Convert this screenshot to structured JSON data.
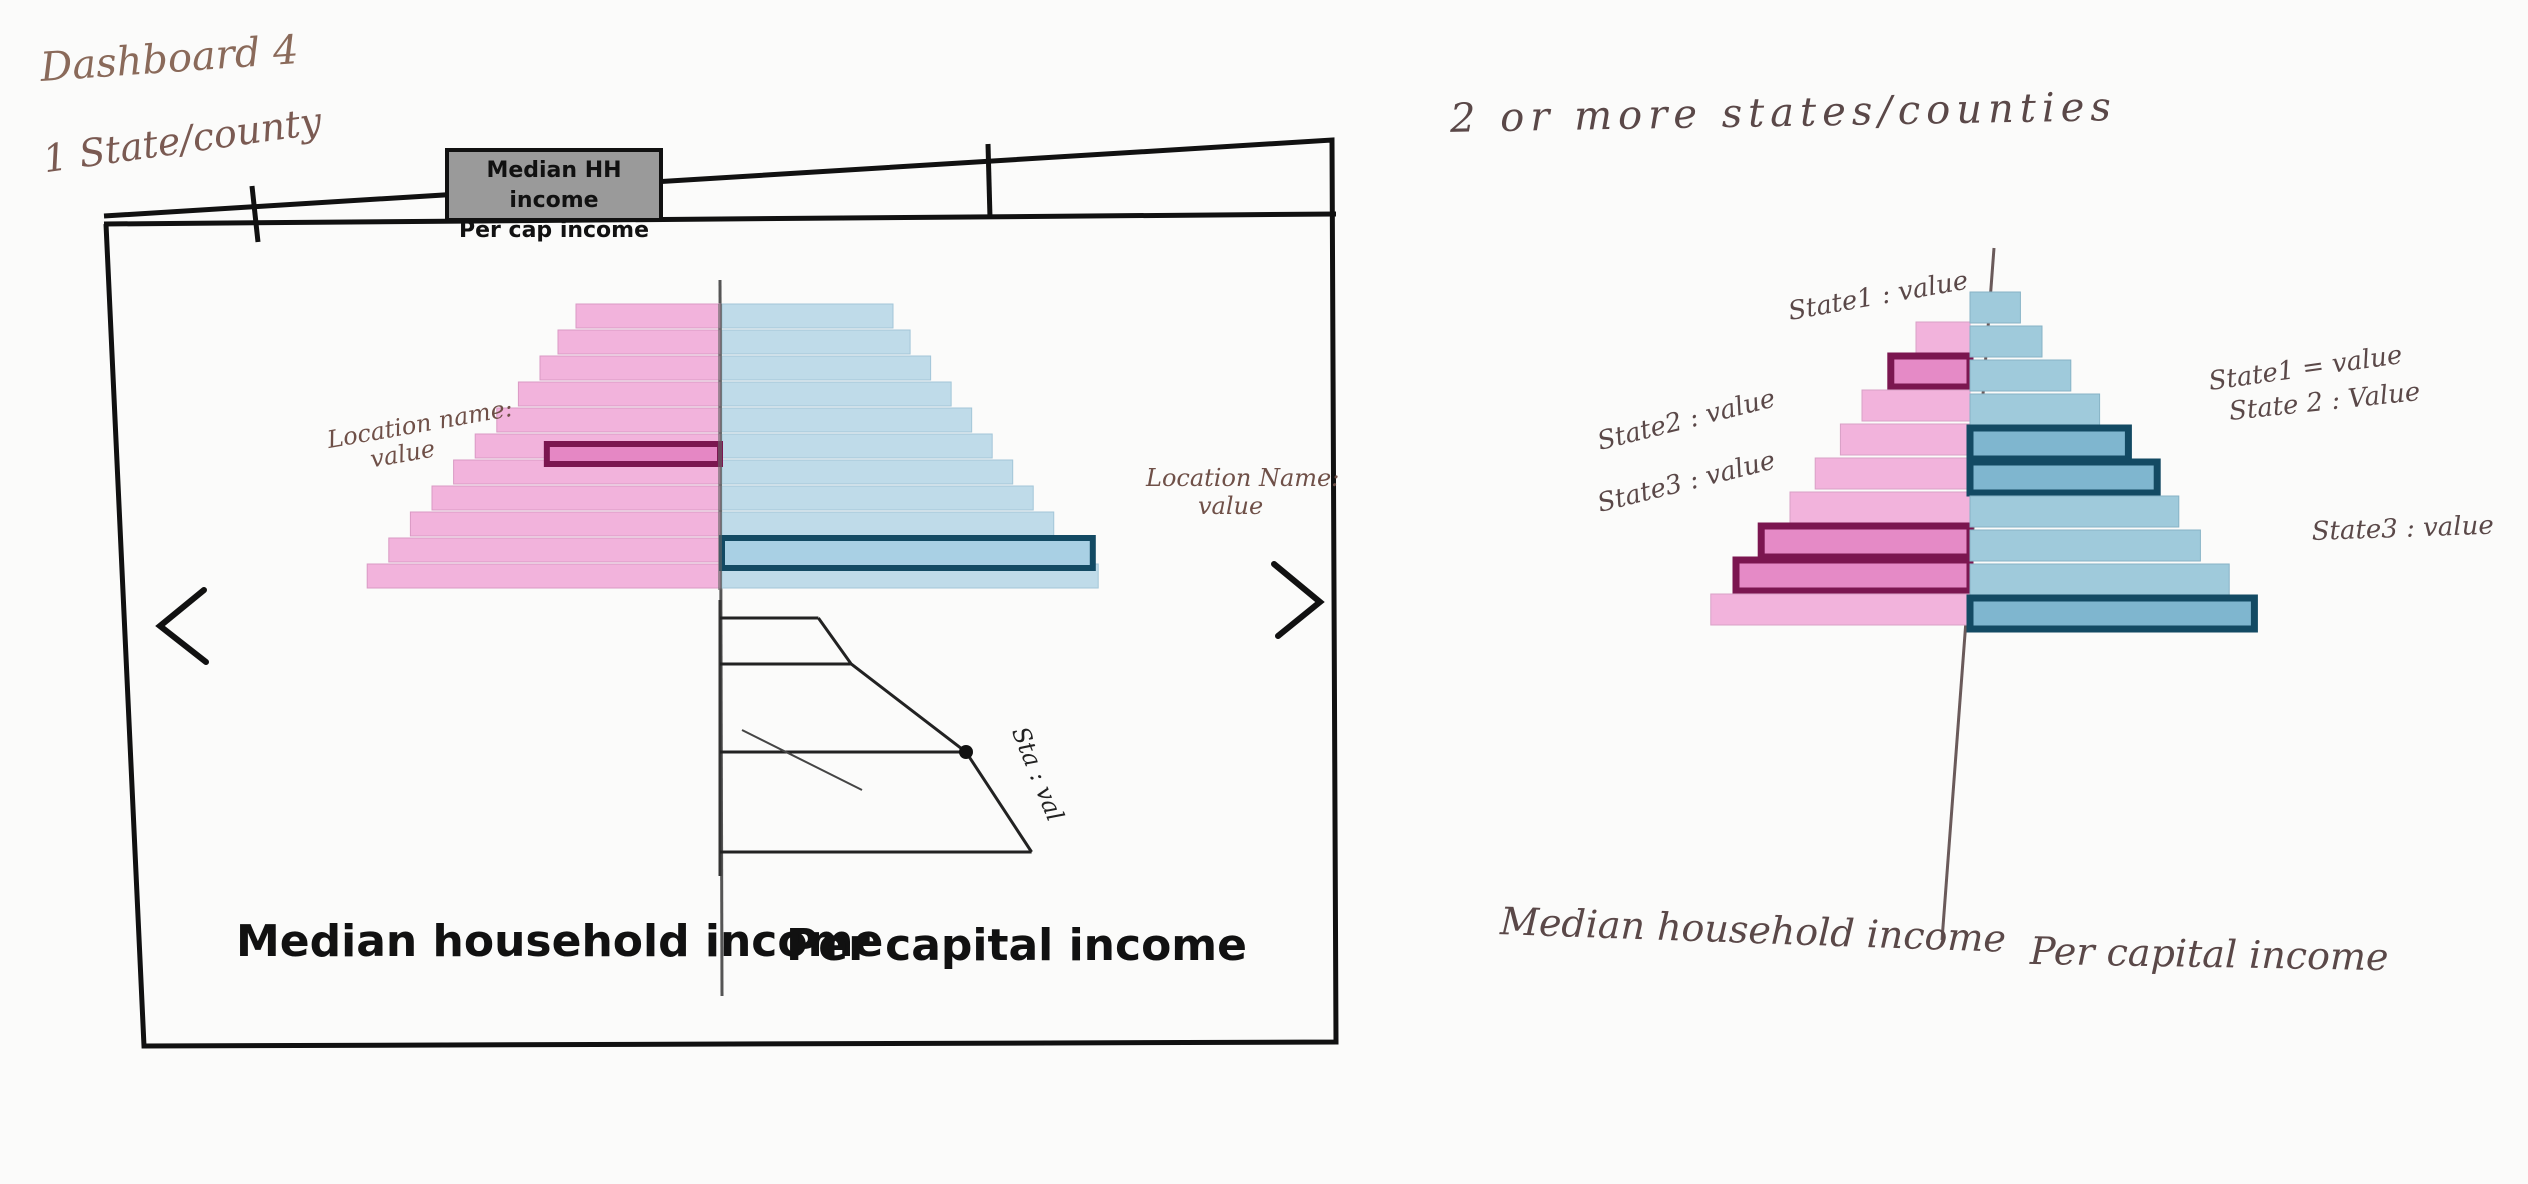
{
  "header": {
    "dashboard_title": "Dashboard 4",
    "single_label": "1 State/county",
    "multi_label": "2 or more states/counties"
  },
  "tabs": {
    "selected_line1": "Median HH income",
    "selected_line2": "Per cap income"
  },
  "nav": {
    "prev_icon": "chevron-left-icon",
    "next_icon": "chevron-right-icon"
  },
  "single_chart": {
    "left_axis_title": "Median household income",
    "right_axis_title": "Per capital income",
    "left_annotation_line1": "Location name:",
    "left_annotation_line2": "value",
    "right_annotation_line1": "Location Name:",
    "right_annotation_line2": "value",
    "line_annotation": "Sta : val",
    "colors": {
      "left": "#f2b3dc",
      "right": "#bfdbe9",
      "left_highlight": "#7b1650",
      "right_highlight": "#134a63"
    }
  },
  "chart_data": [
    {
      "type": "bar",
      "left_highlight": 6,
      "right_highlight": 9,
      "left_values": [
        4,
        4.5,
        5,
        5.6,
        6.2,
        6.8,
        7.4,
        8,
        8.6,
        9.2,
        9.8
      ],
      "right_values": [
        5,
        5.5,
        6.1,
        6.7,
        7.3,
        7.9,
        8.5,
        9.1,
        9.7,
        10.3,
        11
      ]
    },
    {
      "type": "line",
      "x": [
        0,
        1,
        2,
        3
      ],
      "y": [
        1.2,
        1.6,
        3.0,
        3.8
      ]
    },
    {
      "type": "bar",
      "left_axis_title": "Median household income",
      "right_axis_title": "Per capital income",
      "left_values": [
        1.5,
        2.2,
        3,
        3.6,
        4.3,
        5,
        5.8,
        6.5,
        7.2
      ],
      "right_values": [
        1.4,
        2,
        2.8,
        3.6,
        4.4,
        5.2,
        5.8,
        6.4,
        7.2,
        7.9
      ],
      "left_highlight_rows": [
        1,
        6,
        7
      ],
      "right_highlight_rows": [
        4,
        5,
        9
      ],
      "labels": {
        "l1": "State1 : value",
        "l2": "State2 : value",
        "l3": "State3 : value",
        "r1": "State1 = value",
        "r2": "State 2 : Value",
        "r3": "State3 : value"
      }
    }
  ]
}
